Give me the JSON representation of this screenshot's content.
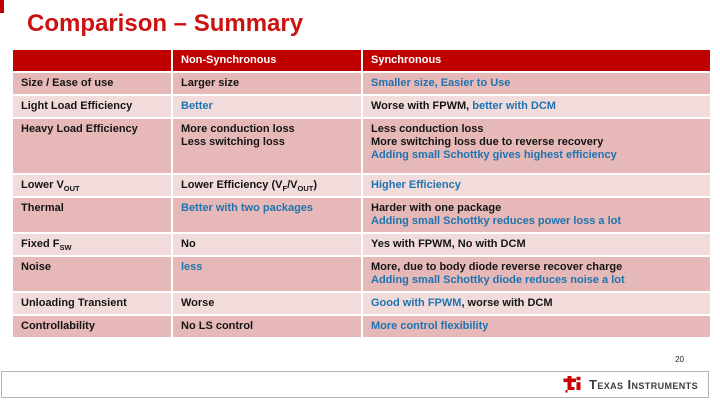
{
  "slide": {
    "title": "Comparison – Summary",
    "page_number": "20"
  },
  "footer": {
    "logo_text": "Texas Instruments",
    "logo_icon": "ti-bug-icon"
  },
  "colors": {
    "title_red": "#cc1111",
    "header_bg": "#c00000",
    "band_dark": "#e6b9b8",
    "band_light": "#f2dcdb",
    "blue": "#1e73b0",
    "logo_red": "#cc0000"
  },
  "table": {
    "headers": [
      "",
      "Non-Synchronous",
      "Synchronous"
    ],
    "rows": [
      {
        "label": [
          [
            {
              "t": "Size / Ease of use"
            }
          ]
        ],
        "non_sync": [
          [
            {
              "t": "Larger size"
            }
          ]
        ],
        "sync": [
          [
            {
              "t": "Smaller size, Easier to Use",
              "c": "blue"
            }
          ]
        ]
      },
      {
        "label": [
          [
            {
              "t": "Light Load Efficiency"
            }
          ]
        ],
        "non_sync": [
          [
            {
              "t": "Better",
              "c": "blue"
            }
          ]
        ],
        "sync": [
          [
            {
              "t": "Worse with FPWM, "
            },
            {
              "t": "better with DCM",
              "c": "blue"
            }
          ]
        ]
      },
      {
        "label": [
          [
            {
              "t": "Heavy Load Efficiency"
            }
          ]
        ],
        "non_sync": [
          [
            {
              "t": "More conduction loss"
            }
          ],
          [
            {
              "t": "Less switching loss"
            }
          ]
        ],
        "sync": [
          [
            {
              "t": "Less conduction loss"
            }
          ],
          [
            {
              "t": "More switching loss due to reverse recovery"
            }
          ],
          [
            {
              "t": "Adding small Schottky gives highest efficiency",
              "c": "blue"
            }
          ]
        ]
      },
      {
        "label": [
          [
            {
              "t": "Lower V"
            },
            {
              "t": "OUT",
              "sub": true
            }
          ]
        ],
        "non_sync": [
          [
            {
              "t": "Lower Efficiency (V"
            },
            {
              "t": "F",
              "sub": true
            },
            {
              "t": "/V"
            },
            {
              "t": "OUT",
              "sub": true
            },
            {
              "t": ")"
            }
          ]
        ],
        "sync": [
          [
            {
              "t": "Higher Efficiency",
              "c": "blue"
            }
          ]
        ]
      },
      {
        "label": [
          [
            {
              "t": "Thermal"
            }
          ]
        ],
        "non_sync": [
          [
            {
              "t": "Better with two packages",
              "c": "blue"
            }
          ]
        ],
        "sync": [
          [
            {
              "t": "Harder with one package"
            }
          ],
          [
            {
              "t": "Adding small Schottky reduces power loss a lot",
              "c": "blue"
            }
          ]
        ]
      },
      {
        "label": [
          [
            {
              "t": "Fixed F"
            },
            {
              "t": "SW",
              "sub": true
            }
          ]
        ],
        "non_sync": [
          [
            {
              "t": "No"
            }
          ]
        ],
        "sync": [
          [
            {
              "t": "Yes with FPWM, No with DCM"
            }
          ]
        ]
      },
      {
        "label": [
          [
            {
              "t": "Noise"
            }
          ]
        ],
        "non_sync": [
          [
            {
              "t": "less",
              "c": "blue"
            }
          ]
        ],
        "sync": [
          [
            {
              "t": "More, due to body diode reverse recover charge"
            }
          ],
          [
            {
              "t": "Adding small Schottky diode reduces noise a lot",
              "c": "blue"
            }
          ]
        ]
      },
      {
        "label": [
          [
            {
              "t": "Unloading Transient"
            }
          ]
        ],
        "non_sync": [
          [
            {
              "t": "Worse"
            }
          ]
        ],
        "sync": [
          [
            {
              "t": "Good with FPWM",
              "c": "blue"
            },
            {
              "t": ", worse with DCM"
            }
          ]
        ]
      },
      {
        "label": [
          [
            {
              "t": "Controllability"
            }
          ]
        ],
        "non_sync": [
          [
            {
              "t": "No LS control"
            }
          ]
        ],
        "sync": [
          [
            {
              "t": "More control flexibility",
              "c": "blue"
            }
          ]
        ]
      }
    ]
  }
}
